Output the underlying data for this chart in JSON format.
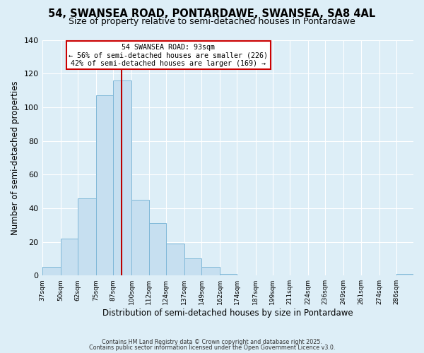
{
  "title": "54, SWANSEA ROAD, PONTARDAWE, SWANSEA, SA8 4AL",
  "subtitle": "Size of property relative to semi-detached houses in Pontardawe",
  "xlabel": "Distribution of semi-detached houses by size in Pontardawe",
  "ylabel": "Number of semi-detached properties",
  "bin_labels": [
    "37sqm",
    "50sqm",
    "62sqm",
    "75sqm",
    "87sqm",
    "100sqm",
    "112sqm",
    "124sqm",
    "137sqm",
    "149sqm",
    "162sqm",
    "174sqm",
    "187sqm",
    "199sqm",
    "211sqm",
    "224sqm",
    "236sqm",
    "249sqm",
    "261sqm",
    "274sqm",
    "286sqm"
  ],
  "bin_edges": [
    37,
    50,
    62,
    75,
    87,
    100,
    112,
    124,
    137,
    149,
    162,
    174,
    187,
    199,
    211,
    224,
    236,
    249,
    261,
    274,
    286
  ],
  "bar_heights": [
    5,
    22,
    46,
    107,
    116,
    45,
    31,
    19,
    10,
    5,
    1,
    0,
    0,
    0,
    0,
    0,
    0,
    0,
    0,
    0,
    1
  ],
  "bar_color": "#c6dff0",
  "bar_edge_color": "#7fb8d8",
  "property_size": 93,
  "vline_color": "#bb0000",
  "annotation_title": "54 SWANSEA ROAD: 93sqm",
  "annotation_line1": "← 56% of semi-detached houses are smaller (226)",
  "annotation_line2": "42% of semi-detached houses are larger (169) →",
  "annotation_box_color": "#ffffff",
  "annotation_border_color": "#cc0000",
  "ylim_max": 140,
  "yticks": [
    0,
    20,
    40,
    60,
    80,
    100,
    120,
    140
  ],
  "footer1": "Contains HM Land Registry data © Crown copyright and database right 2025.",
  "footer2": "Contains public sector information licensed under the Open Government Licence v3.0.",
  "bg_color": "#ddeef7",
  "grid_color": "#ffffff",
  "title_fontsize": 10.5,
  "subtitle_fontsize": 9
}
